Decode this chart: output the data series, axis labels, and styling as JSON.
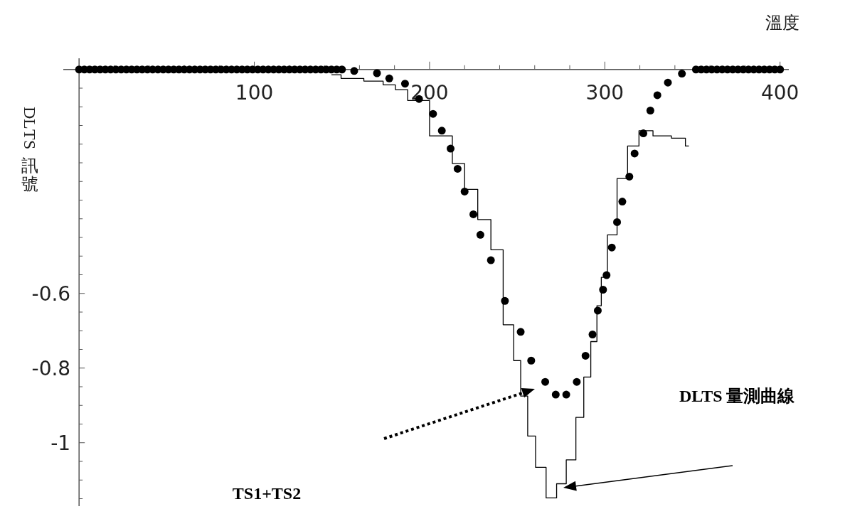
{
  "chart_data": {
    "type": "scatter",
    "xlabel": "溫度",
    "ylabel": "DLTS 訊號",
    "xlim": [
      -9,
      405
    ],
    "ylim": [
      -1.17,
      0.03
    ],
    "xticks": [
      {
        "value": 20,
        "label": null
      },
      {
        "value": 40,
        "label": null
      },
      {
        "value": 60,
        "label": null
      },
      {
        "value": 80,
        "label": null
      },
      100,
      {
        "value": 120,
        "label": null
      },
      {
        "value": 140,
        "label": null
      },
      {
        "value": 160,
        "label": null
      },
      {
        "value": 180,
        "label": null
      },
      200,
      {
        "value": 220,
        "label": null
      },
      {
        "value": 240,
        "label": null
      },
      {
        "value": 260,
        "label": null
      },
      {
        "value": 280,
        "label": null
      },
      300,
      {
        "value": 320,
        "label": null
      },
      {
        "value": 340,
        "label": null
      },
      {
        "value": 360,
        "label": null
      },
      {
        "value": 380,
        "label": null
      },
      400
    ],
    "yticks": [
      {
        "value": -1.15,
        "label": null
      },
      {
        "value": -1.1,
        "label": null
      },
      {
        "value": -1.05,
        "label": null
      },
      -1,
      {
        "value": -0.95,
        "label": null
      },
      {
        "value": -0.9,
        "label": null
      },
      {
        "value": -0.85,
        "label": null
      },
      -0.8,
      {
        "value": -0.75,
        "label": null
      },
      {
        "value": -0.7,
        "label": null
      },
      {
        "value": -0.65,
        "label": null
      },
      -0.6,
      {
        "value": -0.55,
        "label": null
      },
      {
        "value": -0.5,
        "label": null
      },
      {
        "value": -0.45,
        "label": null
      },
      {
        "value": -0.4,
        "label": null
      },
      {
        "value": -0.35,
        "label": null
      },
      {
        "value": -0.3,
        "label": null
      },
      {
        "value": -0.25,
        "label": null
      },
      {
        "value": -0.2,
        "label": null
      },
      {
        "value": -0.15,
        "label": null
      },
      {
        "value": -0.1,
        "label": null
      },
      {
        "value": -0.05,
        "label": null
      }
    ],
    "series": [
      {
        "color": "#000000",
        "marker": "circle",
        "x": [
          0,
          3,
          6,
          9,
          12,
          15,
          18,
          21,
          24,
          27,
          30,
          33,
          36,
          39,
          42,
          45,
          48,
          51,
          54,
          57,
          60,
          63,
          66,
          69,
          72,
          75,
          78,
          81,
          84,
          87,
          90,
          93,
          96,
          99,
          102,
          105,
          108,
          111,
          114,
          117,
          120,
          123,
          126,
          129,
          132,
          135,
          138,
          141,
          144,
          147,
          150,
          157,
          170,
          177,
          186,
          194,
          202,
          207,
          212,
          216,
          220,
          225,
          229,
          235,
          243,
          252,
          258,
          266,
          272,
          278,
          284,
          289,
          293,
          296,
          299,
          301,
          304,
          307,
          310,
          314,
          317,
          322,
          326,
          330,
          336,
          344,
          352,
          355,
          358,
          361,
          364,
          367,
          370,
          373,
          376,
          379,
          382,
          385,
          388,
          391,
          394,
          397,
          400
        ],
        "values": [
          0,
          0,
          0,
          0,
          0,
          0,
          0,
          0,
          0,
          0,
          0,
          0,
          0,
          0,
          0,
          0,
          0,
          0,
          0,
          0,
          0,
          0,
          0,
          0,
          0,
          0,
          0,
          0,
          0,
          0,
          0,
          0,
          0,
          0,
          0,
          0,
          0,
          0,
          0,
          0,
          0,
          0,
          0,
          0,
          0,
          0,
          0,
          0,
          0,
          0,
          0,
          -0.004,
          -0.01,
          -0.024,
          -0.038,
          -0.079,
          -0.119,
          -0.164,
          -0.212,
          -0.266,
          -0.327,
          -0.388,
          -0.443,
          -0.511,
          -0.62,
          -0.703,
          -0.78,
          -0.837,
          -0.871,
          -0.871,
          -0.837,
          -0.767,
          -0.71,
          -0.646,
          -0.59,
          -0.551,
          -0.477,
          -0.409,
          -0.354,
          -0.287,
          -0.225,
          -0.171,
          -0.11,
          -0.069,
          -0.035,
          -0.011,
          0,
          0,
          0,
          0,
          0,
          0,
          0,
          0,
          0,
          0,
          0,
          0,
          0,
          0,
          0,
          0,
          0
        ]
      },
      {
        "type": "step",
        "color": "#000000",
        "marker": "none",
        "line_style": "solid",
        "x": [
          144,
          155,
          170,
          177,
          184,
          191,
          209,
          217,
          223,
          232,
          238,
          246,
          250,
          254,
          258,
          263,
          270,
          275,
          281,
          286,
          290,
          294,
          297,
          299,
          304,
          310,
          316,
          323,
          332,
          344,
          348
        ],
        "values": [
          -0.014,
          -0.024,
          -0.031,
          -0.041,
          -0.054,
          -0.083,
          -0.178,
          -0.252,
          -0.321,
          -0.402,
          -0.483,
          -0.684,
          -0.78,
          -0.875,
          -0.982,
          -1.066,
          -1.148,
          -1.11,
          -1.046,
          -0.932,
          -0.824,
          -0.729,
          -0.633,
          -0.557,
          -0.443,
          -0.292,
          -0.205,
          -0.164,
          -0.178,
          -0.184,
          -0.205
        ]
      }
    ],
    "annotations": [
      "DLTS 量測曲線",
      "TS1+TS2"
    ]
  }
}
